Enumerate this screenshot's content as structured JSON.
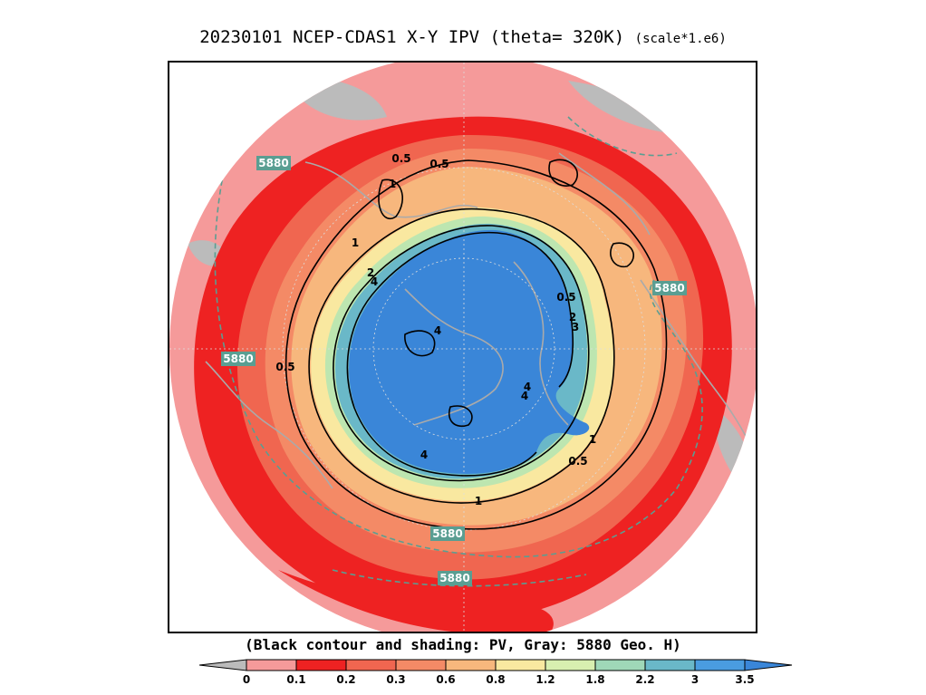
{
  "title": {
    "main": "20230101 NCEP-CDAS1 X-Y IPV (theta= 320K)",
    "scale": "(scale*1.e6)"
  },
  "caption": "(Black contour and shading: PV, Gray: 5880 Geo. H)",
  "colorbar": {
    "ticks": [
      "0",
      "0.1",
      "0.2",
      "0.3",
      "0.6",
      "0.8",
      "1.2",
      "1.8",
      "2.2",
      "3",
      "3.5"
    ],
    "colors": [
      "#bbbbbb",
      "#f59a9a",
      "#ee2222",
      "#f06650",
      "#f48a66",
      "#f7b77d",
      "#f9e8a0",
      "#d8efb0",
      "#9fd8b8",
      "#6ab8c8",
      "#4a9ce0",
      "#3a86d8"
    ]
  },
  "geoh_labels": [
    "5880",
    "5880",
    "5880",
    "5880",
    "5880"
  ],
  "pv_labels": [
    "0.5",
    "0.5",
    "1",
    "1",
    "2",
    "4",
    "0.5",
    "2",
    "3",
    "4",
    "0.5",
    "4",
    "4",
    "1",
    "0.5",
    "1",
    "4"
  ],
  "colors": {
    "ocean_bg": "#f59a9a",
    "strong": "#ee2222",
    "mid": "#f48a66",
    "pale": "#f7b77d",
    "yellow": "#f9e8a0",
    "green": "#bde6b0",
    "teal": "#6ab8c8",
    "blue": "#3a86d8",
    "coast": "#aaaaaa",
    "geoh": "#5a9e92"
  }
}
